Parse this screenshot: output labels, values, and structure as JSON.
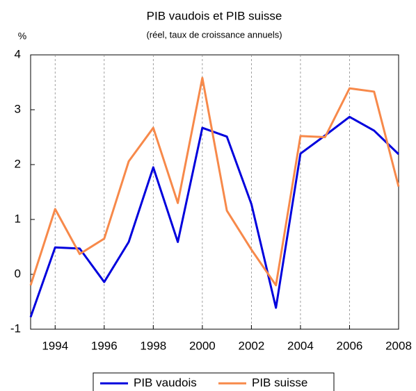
{
  "chart_data": {
    "type": "line",
    "title": "PIB vaudois et PIB suisse",
    "subtitle": "(réel, taux de croissance annuels)",
    "y_label": "%",
    "x": [
      1993,
      1994,
      1995,
      1996,
      1997,
      1998,
      1999,
      2000,
      2001,
      2002,
      2003,
      2004,
      2005,
      2006,
      2007,
      2008
    ],
    "series": [
      {
        "name": "PIB vaudois",
        "color": "#0000dd",
        "values": [
          -0.78,
          0.49,
          0.47,
          -0.14,
          0.59,
          1.95,
          0.59,
          2.67,
          2.51,
          1.28,
          -0.61,
          2.2,
          2.53,
          2.87,
          2.62,
          2.19
        ]
      },
      {
        "name": "PIB suisse",
        "color": "#f7894a",
        "values": [
          -0.2,
          1.19,
          0.37,
          0.65,
          2.06,
          2.67,
          1.3,
          3.58,
          1.16,
          0.45,
          -0.2,
          2.52,
          2.5,
          3.39,
          3.33,
          1.6
        ]
      }
    ],
    "xlim": [
      1993,
      2008
    ],
    "xticks": [
      1994,
      1996,
      1998,
      2000,
      2002,
      2004,
      2006,
      2008
    ],
    "ylim": [
      -1,
      4
    ],
    "yticks": [
      -1,
      0,
      1,
      2,
      3,
      4
    ],
    "grid": true,
    "legend": "bottom"
  }
}
